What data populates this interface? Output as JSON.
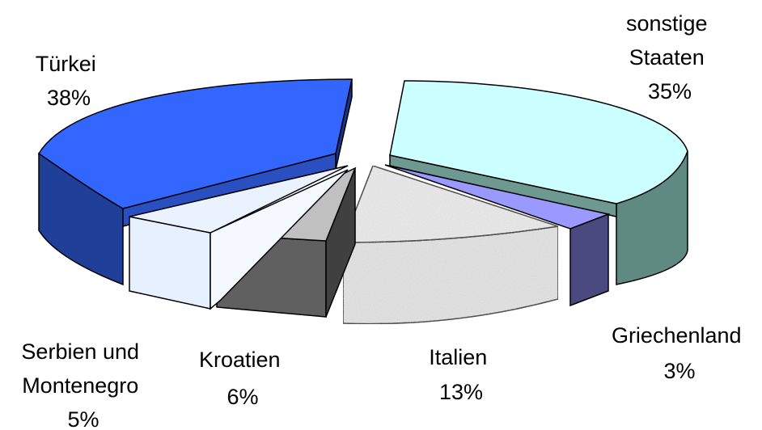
{
  "chart_data": {
    "type": "pie",
    "style": "3d-exploded",
    "slices": [
      {
        "label": "Türkei",
        "value": 38,
        "value_label": "38%",
        "color": "#3366ff"
      },
      {
        "label": "sonstige Staaten",
        "value": 35,
        "value_label": "35%",
        "color": "#ccffff"
      },
      {
        "label": "Griechenland",
        "value": 3,
        "value_label": "3%",
        "color": "#9999ff"
      },
      {
        "label": "Italien",
        "value": 13,
        "value_label": "13%",
        "color": "#ececec"
      },
      {
        "label": "Kroatien",
        "value": 6,
        "value_label": "6%",
        "color": "#c0c0c0"
      },
      {
        "label": "Serbien und Montenegro",
        "value": 5,
        "value_label": "5%",
        "color": "#e6f0ff"
      }
    ],
    "labels_text": {
      "tuerkei": [
        "Türkei",
        "38%"
      ],
      "sonstige": [
        "sonstige",
        "Staaten",
        "35%"
      ],
      "griechenland": [
        "Griechenland",
        "3%"
      ],
      "italien": [
        "Italien",
        "13%"
      ],
      "kroatien": [
        "Kroatien",
        "6%"
      ],
      "serbien": [
        "Serbien und",
        "Montenegro",
        "5%"
      ]
    }
  }
}
